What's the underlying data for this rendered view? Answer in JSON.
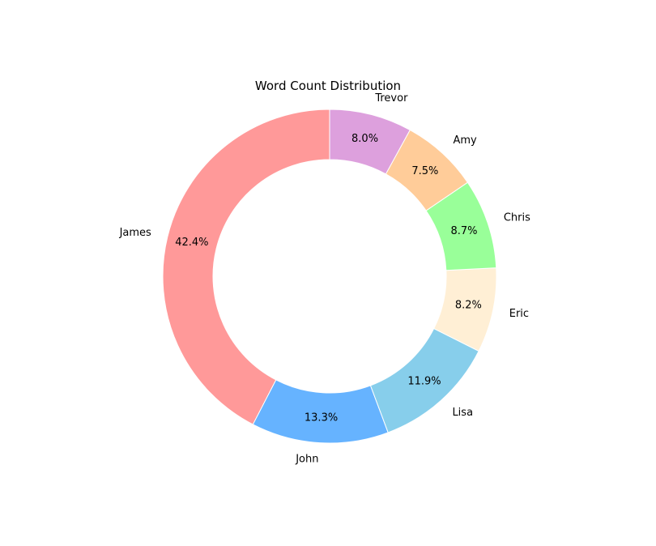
{
  "chart_data": {
    "type": "pie",
    "title": "Word Count Distribution",
    "donut": true,
    "start_angle_deg": 90,
    "direction": "counterclockwise",
    "slices": [
      {
        "label": "James",
        "value": 42.4,
        "pct_label": "42.4%",
        "color": "#ff9999"
      },
      {
        "label": "John",
        "value": 13.3,
        "pct_label": "13.3%",
        "color": "#66b3ff"
      },
      {
        "label": "Lisa",
        "value": 11.9,
        "pct_label": "11.9%",
        "color": "#87ceeb"
      },
      {
        "label": "Eric",
        "value": 8.2,
        "pct_label": "8.2%",
        "color": "#ffefd5"
      },
      {
        "label": "Chris",
        "value": 8.7,
        "pct_label": "8.7%",
        "color": "#99ff99"
      },
      {
        "label": "Amy",
        "value": 7.5,
        "pct_label": "7.5%",
        "color": "#ffcc99"
      },
      {
        "label": "Trevor",
        "value": 8.0,
        "pct_label": "8.0%",
        "color": "#dda0dd"
      }
    ]
  }
}
